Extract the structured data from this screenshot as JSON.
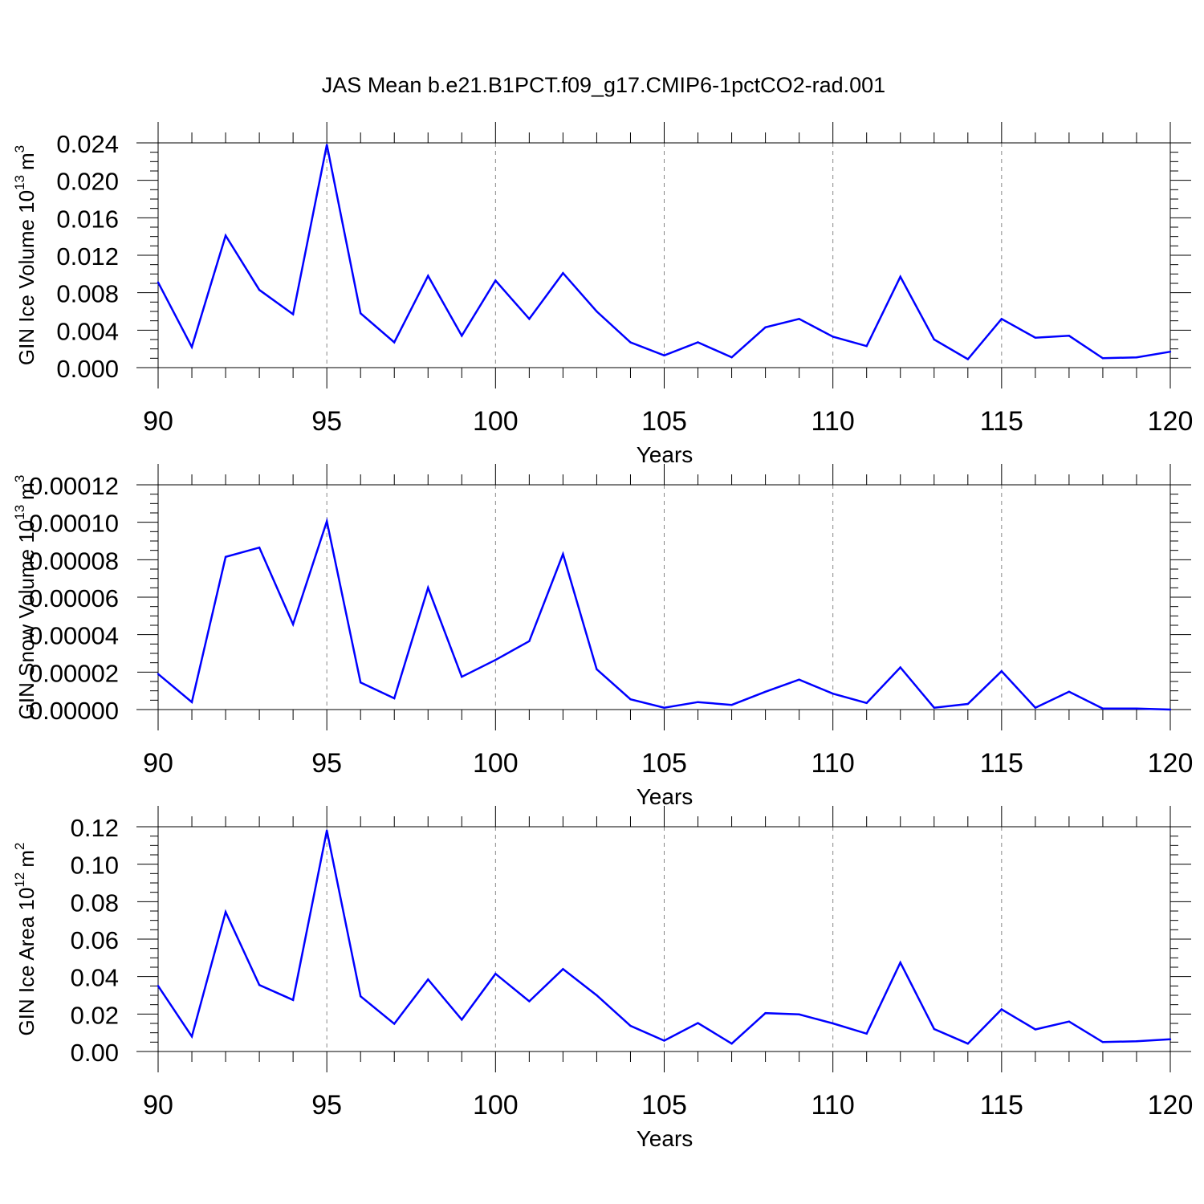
{
  "title": "JAS Mean b.e21.B1PCT.f09_g17.CMIP6-1pctCO2-rad.001",
  "colors": {
    "series": "#0000ff",
    "axis": "#000000",
    "grid": "#888888",
    "background": "#ffffff"
  },
  "chart_data": [
    {
      "type": "line",
      "ylabel_main": "GIN Ice Volume 10",
      "ylabel_exp": "13",
      "ylabel_unit": "m",
      "ylabel_unit_exp": "3",
      "xlabel": "Years",
      "xlim": [
        90,
        120
      ],
      "ylim": [
        0,
        0.024
      ],
      "xticks": [
        90,
        95,
        100,
        105,
        110,
        115,
        120
      ],
      "yticks": [
        "0.000",
        "0.004",
        "0.008",
        "0.012",
        "0.016",
        "0.020",
        "0.024"
      ],
      "x": [
        90,
        91,
        92,
        93,
        94,
        95,
        96,
        97,
        98,
        99,
        100,
        101,
        102,
        103,
        104,
        105,
        106,
        107,
        108,
        109,
        110,
        111,
        112,
        113,
        114,
        115,
        116,
        117,
        118,
        119,
        120
      ],
      "values": [
        0.0091,
        0.0022,
        0.0141,
        0.0083,
        0.0057,
        0.0238,
        0.0058,
        0.0027,
        0.0098,
        0.0034,
        0.0093,
        0.0052,
        0.0101,
        0.006,
        0.0027,
        0.0013,
        0.0027,
        0.0011,
        0.0043,
        0.0052,
        0.0033,
        0.0023,
        0.0097,
        0.003,
        0.0009,
        0.0052,
        0.0032,
        0.0034,
        0.001,
        0.0011,
        0.0017
      ]
    },
    {
      "type": "line",
      "ylabel_main": "GIN Snow Volume 10",
      "ylabel_exp": "13",
      "ylabel_unit": "m",
      "ylabel_unit_exp": "3",
      "xlabel": "Years",
      "xlim": [
        90,
        120
      ],
      "ylim": [
        0,
        0.00012
      ],
      "xticks": [
        90,
        95,
        100,
        105,
        110,
        115,
        120
      ],
      "yticks": [
        "0.00000",
        "0.00002",
        "0.00004",
        "0.00006",
        "0.00008",
        "0.00010",
        "0.00012"
      ],
      "x": [
        90,
        91,
        92,
        93,
        94,
        95,
        96,
        97,
        98,
        99,
        100,
        101,
        102,
        103,
        104,
        105,
        106,
        107,
        108,
        109,
        110,
        111,
        112,
        113,
        114,
        115,
        116,
        117,
        118,
        119,
        120
      ],
      "values": [
        1.9e-05,
        4e-06,
        8.15e-05,
        8.65e-05,
        4.55e-05,
        0.0001005,
        1.45e-05,
        6e-06,
        6.5e-05,
        1.75e-05,
        2.65e-05,
        3.65e-05,
        8.3e-05,
        2.15e-05,
        5.5e-06,
        1e-06,
        4e-06,
        2.5e-06,
        9.5e-06,
        1.6e-05,
        8.5e-06,
        3.5e-06,
        2.25e-05,
        1e-06,
        3e-06,
        2.05e-05,
        1e-06,
        9.5e-06,
        5e-07,
        5e-07,
        0.0
      ]
    },
    {
      "type": "line",
      "ylabel_main": "GIN Ice Area 10",
      "ylabel_exp": "12",
      "ylabel_unit": "m",
      "ylabel_unit_exp": "2",
      "xlabel": "Years",
      "xlim": [
        90,
        120
      ],
      "ylim": [
        0,
        0.12
      ],
      "xticks": [
        90,
        95,
        100,
        105,
        110,
        115,
        120
      ],
      "yticks": [
        "0.00",
        "0.02",
        "0.04",
        "0.06",
        "0.08",
        "0.10",
        "0.12"
      ],
      "x": [
        90,
        91,
        92,
        93,
        94,
        95,
        96,
        97,
        98,
        99,
        100,
        101,
        102,
        103,
        104,
        105,
        106,
        107,
        108,
        109,
        110,
        111,
        112,
        113,
        114,
        115,
        116,
        117,
        118,
        119,
        120
      ],
      "values": [
        0.035,
        0.008,
        0.0745,
        0.0355,
        0.0275,
        0.118,
        0.0295,
        0.0148,
        0.0385,
        0.017,
        0.0415,
        0.0268,
        0.044,
        0.03,
        0.0137,
        0.0058,
        0.0152,
        0.0042,
        0.0205,
        0.0198,
        0.015,
        0.0095,
        0.0475,
        0.012,
        0.0042,
        0.0225,
        0.0118,
        0.016,
        0.005,
        0.0055,
        0.0065
      ]
    }
  ]
}
